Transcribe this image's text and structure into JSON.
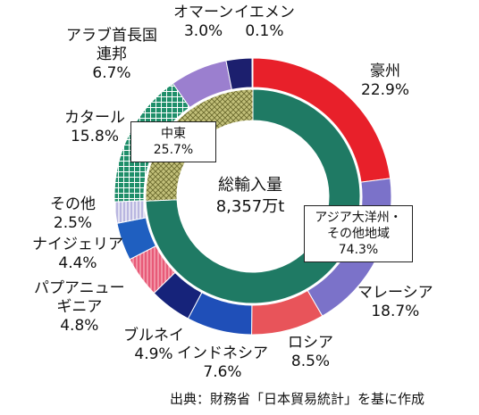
{
  "chart_data": {
    "type": "donut",
    "center_label": {
      "title": "総輸入量",
      "total": "8,357万t"
    },
    "outer_ring": [
      {
        "name": "豪州",
        "value": 22.9,
        "display": "22.9%",
        "color": "#e8202a",
        "pattern": "solid"
      },
      {
        "name": "マレーシア",
        "value": 18.7,
        "display": "18.7%",
        "color": "#7b72c9",
        "pattern": "solid"
      },
      {
        "name": "ロシア",
        "value": 8.5,
        "display": "8.5%",
        "color": "#e8545a",
        "pattern": "solid"
      },
      {
        "name": "インドネシア",
        "value": 7.6,
        "display": "7.6%",
        "color": "#1f4fb8",
        "pattern": "solid"
      },
      {
        "name": "ブルネイ",
        "value": 4.9,
        "display": "4.9%",
        "color": "#16237a",
        "pattern": "solid"
      },
      {
        "name": "パプアニューギニア",
        "name_lines": [
          "パプアニュー",
          "ギニア"
        ],
        "value": 4.8,
        "display": "4.8%",
        "color": "#e85a78",
        "pattern": "stripes"
      },
      {
        "name": "ナイジェリア",
        "value": 4.4,
        "display": "4.4%",
        "color": "#1f5fc0",
        "pattern": "solid"
      },
      {
        "name": "その他",
        "value": 2.5,
        "display": "2.5%",
        "color": "#b9b6e0",
        "pattern": "stripes"
      },
      {
        "name": "カタール",
        "value": 15.8,
        "display": "15.8%",
        "color": "#1f8f6a",
        "pattern": "grid"
      },
      {
        "name": "アラブ首長国連邦",
        "name_lines": [
          "アラブ首長国",
          "連邦"
        ],
        "value": 6.7,
        "display": "6.7%",
        "color": "#9b7fcf",
        "pattern": "solid"
      },
      {
        "name": "オマーン",
        "value": 3.0,
        "display": "3.0%",
        "color": "#1c1f6e",
        "pattern": "solid"
      },
      {
        "name": "イエメン",
        "value": 0.1,
        "display": "0.1%",
        "color": "#2a2f8a",
        "pattern": "solid"
      }
    ],
    "inner_ring": [
      {
        "name": "アジア大洋州・その他地域",
        "name_lines": [
          "アジア大洋州・",
          "その他地域"
        ],
        "value": 74.3,
        "display": "74.3%",
        "color": "#1f7a64",
        "pattern": "solid"
      },
      {
        "name": "中東",
        "value": 25.7,
        "display": "25.7%",
        "color": "#b8b76a",
        "pattern": "cross"
      }
    ]
  },
  "source_note": "出典：財務省「日本貿易統計」を基に作成"
}
